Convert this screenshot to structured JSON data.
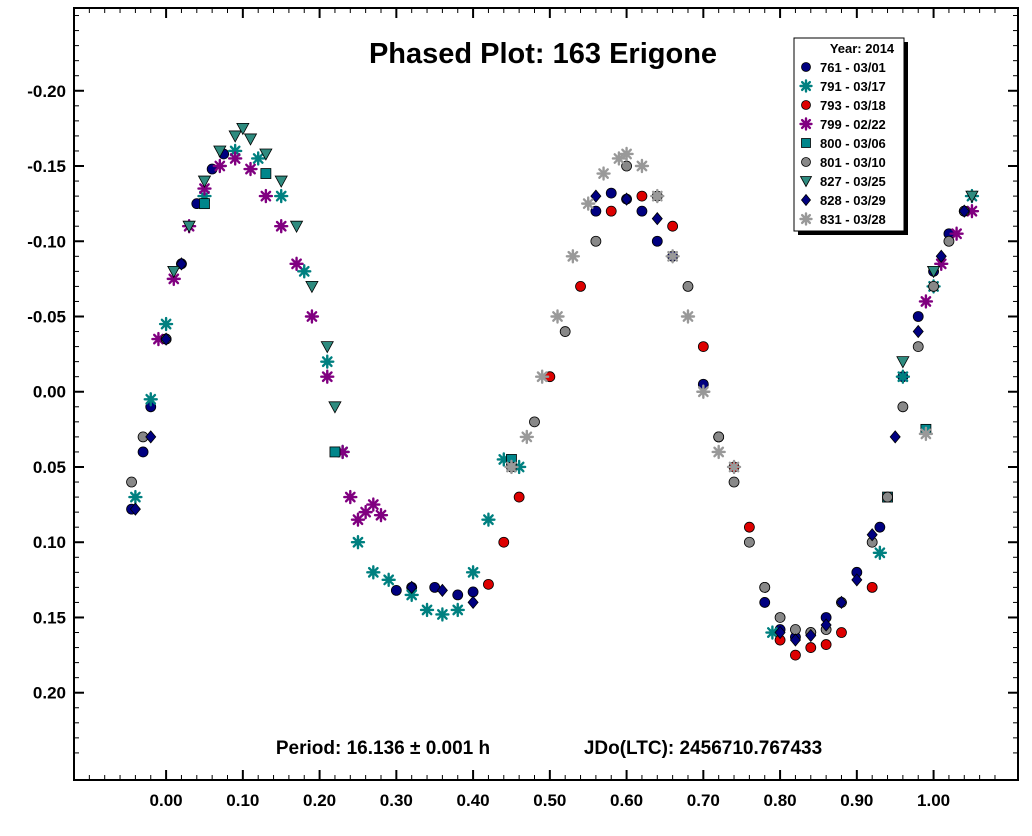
{
  "chart_data": {
    "type": "scatter",
    "title": "Phased Plot: 163 Erigone",
    "xlabel": "",
    "ylabel": "",
    "x_ticks": [
      "0.00",
      "0.10",
      "0.20",
      "0.30",
      "0.40",
      "0.50",
      "0.60",
      "0.70",
      "0.80",
      "0.90",
      "1.00"
    ],
    "y_ticks": [
      "-0.20",
      "-0.15",
      "-0.10",
      "-0.05",
      "0.00",
      "0.05",
      "0.10",
      "0.15",
      "0.20"
    ],
    "xlim": [
      -0.12,
      1.11
    ],
    "ylim": [
      -0.255,
      0.258
    ],
    "y_inverted": true,
    "grid": false,
    "legend_position": "top-right",
    "legend_title": "Year: 2014",
    "footer": {
      "period": "Period: 16.136 ± 0.001 h",
      "jdo": "JDo(LTC): 2456710.767433"
    },
    "series": [
      {
        "name": "761 - 03/01",
        "color": "#000080",
        "marker": "circle",
        "x": [
          -0.045,
          -0.03,
          -0.02,
          0.0,
          0.02,
          0.04,
          0.06,
          0.075,
          0.3,
          0.32,
          0.35,
          0.38,
          0.4,
          0.56,
          0.58,
          0.6,
          0.62,
          0.64,
          0.66,
          0.7,
          0.72,
          0.78,
          0.8,
          0.82,
          0.84,
          0.86,
          0.9,
          0.93,
          0.96,
          0.98,
          1.0,
          1.02,
          1.04
        ],
        "y": [
          0.078,
          0.04,
          0.01,
          -0.035,
          -0.085,
          -0.125,
          -0.148,
          -0.158,
          0.132,
          0.13,
          0.13,
          0.135,
          0.133,
          -0.12,
          -0.132,
          -0.128,
          -0.12,
          -0.1,
          -0.09,
          -0.005,
          0.03,
          0.14,
          0.158,
          0.163,
          0.16,
          0.15,
          0.12,
          0.09,
          -0.01,
          -0.05,
          -0.08,
          -0.105,
          -0.12
        ]
      },
      {
        "name": "791 - 03/17",
        "color": "#008080",
        "marker": "asterisk",
        "x": [
          -0.04,
          -0.02,
          0.0,
          0.05,
          0.09,
          0.12,
          0.15,
          0.18,
          0.21,
          0.23,
          0.25,
          0.27,
          0.29,
          0.32,
          0.34,
          0.36,
          0.38,
          0.4,
          0.42,
          0.44,
          0.46,
          0.79,
          0.93,
          0.96,
          1.0,
          1.05
        ],
        "y": [
          0.07,
          0.005,
          -0.045,
          -0.13,
          -0.16,
          -0.155,
          -0.13,
          -0.08,
          -0.02,
          0.04,
          0.1,
          0.12,
          0.125,
          0.135,
          0.145,
          0.148,
          0.145,
          0.12,
          0.085,
          0.045,
          0.05,
          0.16,
          0.107,
          -0.01,
          -0.07,
          -0.13
        ]
      },
      {
        "name": "793 - 03/18",
        "color": "#dd0000",
        "marker": "circle",
        "x": [
          0.42,
          0.44,
          0.46,
          0.5,
          0.54,
          0.58,
          0.62,
          0.66,
          0.7,
          0.74,
          0.76,
          0.78,
          0.8,
          0.82,
          0.84,
          0.86,
          0.88,
          0.92
        ],
        "y": [
          0.128,
          0.1,
          0.07,
          -0.01,
          -0.07,
          -0.12,
          -0.13,
          -0.11,
          -0.03,
          0.05,
          0.09,
          0.13,
          0.165,
          0.175,
          0.17,
          0.168,
          0.16,
          0.13
        ]
      },
      {
        "name": "799 - 02/22",
        "color": "#800080",
        "marker": "asterisk",
        "x": [
          -0.01,
          0.01,
          0.03,
          0.05,
          0.07,
          0.09,
          0.11,
          0.13,
          0.15,
          0.17,
          0.19,
          0.21,
          0.23,
          0.24,
          0.25,
          0.26,
          0.27,
          0.28,
          0.99,
          1.01,
          1.03,
          1.05
        ],
        "y": [
          -0.035,
          -0.075,
          -0.11,
          -0.135,
          -0.15,
          -0.155,
          -0.148,
          -0.13,
          -0.11,
          -0.085,
          -0.05,
          -0.01,
          0.04,
          0.07,
          0.085,
          0.08,
          0.075,
          0.082,
          -0.06,
          -0.085,
          -0.105,
          -0.12
        ]
      },
      {
        "name": "800 - 03/06",
        "color": "#00868b",
        "marker": "square",
        "x": [
          0.05,
          0.13,
          0.22,
          0.45,
          0.94,
          0.99
        ],
        "y": [
          -0.125,
          -0.145,
          0.04,
          0.045,
          0.07,
          0.025
        ]
      },
      {
        "name": "801 - 03/10",
        "color": "#888888",
        "marker": "circle",
        "x": [
          -0.045,
          -0.03,
          0.0,
          0.45,
          0.48,
          0.52,
          0.56,
          0.6,
          0.64,
          0.68,
          0.72,
          0.74,
          0.76,
          0.78,
          0.8,
          0.82,
          0.84,
          0.86,
          0.88,
          0.92,
          0.94,
          0.96,
          0.98,
          1.0,
          1.02,
          1.04
        ],
        "y": [
          0.06,
          0.03,
          -0.035,
          0.05,
          0.02,
          -0.04,
          -0.1,
          -0.15,
          -0.13,
          -0.07,
          0.03,
          0.06,
          0.1,
          0.13,
          0.15,
          0.158,
          0.16,
          0.158,
          0.14,
          0.1,
          0.07,
          0.01,
          -0.03,
          -0.07,
          -0.1,
          -0.12
        ]
      },
      {
        "name": "827 - 03/25",
        "color": "#2e8b7f",
        "marker": "triangle",
        "x": [
          0.01,
          0.03,
          0.05,
          0.07,
          0.09,
          0.1,
          0.11,
          0.13,
          0.15,
          0.17,
          0.19,
          0.21,
          0.22,
          0.96,
          1.0,
          1.05
        ],
        "y": [
          -0.08,
          -0.11,
          -0.14,
          -0.16,
          -0.17,
          -0.175,
          -0.168,
          -0.158,
          -0.14,
          -0.11,
          -0.07,
          -0.03,
          0.01,
          -0.02,
          -0.08,
          -0.13
        ]
      },
      {
        "name": "828 - 03/29",
        "color": "#000080",
        "marker": "diamond",
        "x": [
          -0.04,
          -0.02,
          0.0,
          0.02,
          0.32,
          0.36,
          0.4,
          0.56,
          0.6,
          0.64,
          0.8,
          0.82,
          0.84,
          0.86,
          0.88,
          0.9,
          0.92,
          0.95,
          0.98,
          1.01,
          1.04
        ],
        "y": [
          0.078,
          0.03,
          -0.035,
          -0.085,
          0.13,
          0.132,
          0.14,
          -0.13,
          -0.128,
          -0.115,
          0.16,
          0.165,
          0.162,
          0.155,
          0.14,
          0.125,
          0.095,
          0.03,
          -0.04,
          -0.09,
          -0.12
        ]
      },
      {
        "name": "831 - 03/28",
        "color": "#999999",
        "marker": "asterisk",
        "x": [
          0.45,
          0.47,
          0.49,
          0.51,
          0.53,
          0.55,
          0.57,
          0.59,
          0.6,
          0.62,
          0.64,
          0.66,
          0.68,
          0.7,
          0.72,
          0.74,
          0.99
        ],
        "y": [
          0.05,
          0.03,
          -0.01,
          -0.05,
          -0.09,
          -0.125,
          -0.145,
          -0.155,
          -0.158,
          -0.15,
          -0.13,
          -0.09,
          -0.05,
          0.0,
          0.04,
          0.05,
          0.028
        ]
      }
    ]
  }
}
